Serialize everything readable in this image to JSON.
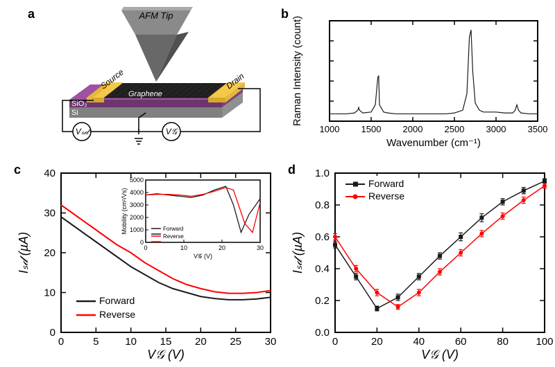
{
  "labels": {
    "a": "a",
    "b": "b",
    "c": "c",
    "d": "d"
  },
  "panel_a": {
    "afm_label": "AFM Tip",
    "source_label": "Source",
    "drain_label": "Drain",
    "graphene_label": "Graphene",
    "sio2_label": "SiO₂",
    "si_label": "Si",
    "vsd_label": "Vₛ𝒹",
    "vg_label": "V𝒢",
    "colors": {
      "tip": "#7a7a7a",
      "tip_side": "#585858",
      "electrode": "#f4c84a",
      "electrode_side": "#d4a82a",
      "graphene": "#2a2a2a",
      "sio2": "#7e3b7e",
      "sio2_side": "#5c2b5c",
      "si": "#a0a0a0",
      "si_side": "#808080",
      "wire": "#000000"
    },
    "fontsize": 13
  },
  "panel_b": {
    "type": "line",
    "xlabel": "Wavenumber (cm⁻¹)",
    "ylabel": "Raman Intensity (count)",
    "xlim": [
      1000,
      3500
    ],
    "xticks": [
      1000,
      1500,
      2000,
      2500,
      3000,
      3500
    ],
    "yticks_count": 6,
    "line_color": "#1a1a1a",
    "line_width": 1.2,
    "data": {
      "x": [
        1000,
        1100,
        1200,
        1300,
        1340,
        1350,
        1360,
        1400,
        1500,
        1550,
        1580,
        1590,
        1600,
        1650,
        1700,
        1800,
        1900,
        2000,
        2100,
        2200,
        2300,
        2400,
        2500,
        2600,
        2650,
        2680,
        2700,
        2720,
        2750,
        2800,
        2850,
        2900,
        2950,
        3000,
        3100,
        3200,
        3230,
        3250,
        3270,
        3300,
        3400,
        3500
      ],
      "y": [
        8,
        8,
        8,
        9,
        12,
        15,
        12,
        9,
        10,
        18,
        48,
        50,
        18,
        10,
        9,
        8,
        8,
        8,
        8,
        8,
        8,
        8,
        9,
        12,
        30,
        92,
        100,
        55,
        20,
        12,
        10,
        10,
        10,
        10,
        9,
        9,
        12,
        18,
        12,
        9,
        8,
        8
      ]
    },
    "label_fontsize": 15,
    "tick_fontsize": 13
  },
  "panel_c": {
    "type": "line",
    "xlabel": "V𝒢 (V)",
    "ylabel": "Iₛ𝒹 (µA)",
    "xlim": [
      0,
      30
    ],
    "ylim": [
      0,
      40
    ],
    "xticks": [
      0,
      5,
      10,
      15,
      20,
      25,
      30
    ],
    "yticks": [
      0,
      10,
      20,
      30,
      40
    ],
    "series": [
      {
        "name": "Forward",
        "color": "#1a1a1a",
        "x": [
          0,
          2,
          4,
          6,
          8,
          10,
          12,
          14,
          16,
          18,
          20,
          22,
          24,
          26,
          28,
          30
        ],
        "y": [
          29,
          26.5,
          24,
          21.5,
          19,
          16.5,
          14.5,
          12.5,
          11,
          10,
          9,
          8.5,
          8.2,
          8.2,
          8.4,
          8.8
        ]
      },
      {
        "name": "Reverse",
        "color": "#ff0000",
        "x": [
          0,
          2,
          4,
          6,
          8,
          10,
          12,
          14,
          16,
          18,
          20,
          22,
          24,
          26,
          28,
          30
        ],
        "y": [
          32,
          29.5,
          27,
          24.5,
          22,
          20,
          17.5,
          15.5,
          13.5,
          12,
          11,
          10.2,
          9.8,
          9.8,
          10,
          10.5
        ]
      }
    ],
    "line_width": 2,
    "legend": {
      "forward": "Forward",
      "reverse": "Reverse",
      "pos": "bottom-left"
    },
    "inset": {
      "xlabel": "V𝒢 (V)",
      "ylabel": "Mobility (cm²/Vs)",
      "xlim": [
        0,
        30
      ],
      "ylim": [
        0,
        5000
      ],
      "xticks": [
        0,
        10,
        20,
        30
      ],
      "yticks": [
        0,
        1000,
        2000,
        3000,
        4000,
        5000
      ],
      "series": [
        {
          "name": "Forward",
          "color": "#1a1a1a",
          "x": [
            0,
            3,
            6,
            9,
            12,
            15,
            18,
            21,
            23,
            25,
            27,
            30
          ],
          "y": [
            3800,
            3900,
            3800,
            3700,
            3600,
            3800,
            4200,
            4500,
            3000,
            800,
            2200,
            3500
          ]
        },
        {
          "name": "Reverse",
          "color": "#ff0000",
          "x": [
            0,
            3,
            6,
            9,
            12,
            15,
            18,
            21,
            23,
            26,
            28,
            30
          ],
          "y": [
            3800,
            3850,
            3850,
            3800,
            3700,
            3850,
            4100,
            4400,
            4200,
            1500,
            800,
            3200
          ]
        }
      ],
      "tick_fontsize": 9,
      "label_fontsize": 9
    },
    "label_fontsize": 18,
    "tick_fontsize": 15
  },
  "panel_d": {
    "type": "line_markers",
    "xlabel": "V𝒢 (V)",
    "ylabel": "Iₛ𝒹 (µA)",
    "xlim": [
      0,
      100
    ],
    "ylim": [
      0,
      1.0
    ],
    "xticks": [
      0,
      20,
      40,
      60,
      80,
      100
    ],
    "yticks": [
      0.0,
      0.2,
      0.4,
      0.6,
      0.8,
      1.0
    ],
    "series": [
      {
        "name": "Forward",
        "color": "#1a1a1a",
        "marker": "square",
        "x": [
          0,
          10,
          20,
          30,
          40,
          50,
          60,
          70,
          80,
          90,
          100
        ],
        "y": [
          0.55,
          0.35,
          0.15,
          0.22,
          0.35,
          0.48,
          0.6,
          0.72,
          0.82,
          0.89,
          0.95
        ],
        "err": [
          0.02,
          0.02,
          0.015,
          0.02,
          0.02,
          0.02,
          0.025,
          0.025,
          0.02,
          0.02,
          0.015
        ]
      },
      {
        "name": "Reverse",
        "color": "#ff0000",
        "marker": "circle",
        "x": [
          0,
          10,
          20,
          30,
          40,
          50,
          60,
          70,
          80,
          90,
          100
        ],
        "y": [
          0.6,
          0.4,
          0.25,
          0.16,
          0.25,
          0.38,
          0.5,
          0.62,
          0.73,
          0.83,
          0.92
        ],
        "err": [
          0.02,
          0.02,
          0.02,
          0.015,
          0.02,
          0.02,
          0.02,
          0.02,
          0.02,
          0.02,
          0.015
        ]
      }
    ],
    "line_width": 1.5,
    "marker_size": 6,
    "legend": {
      "forward": "Forward",
      "reverse": "Reverse",
      "pos": "top-left"
    },
    "label_fontsize": 18,
    "tick_fontsize": 15
  }
}
